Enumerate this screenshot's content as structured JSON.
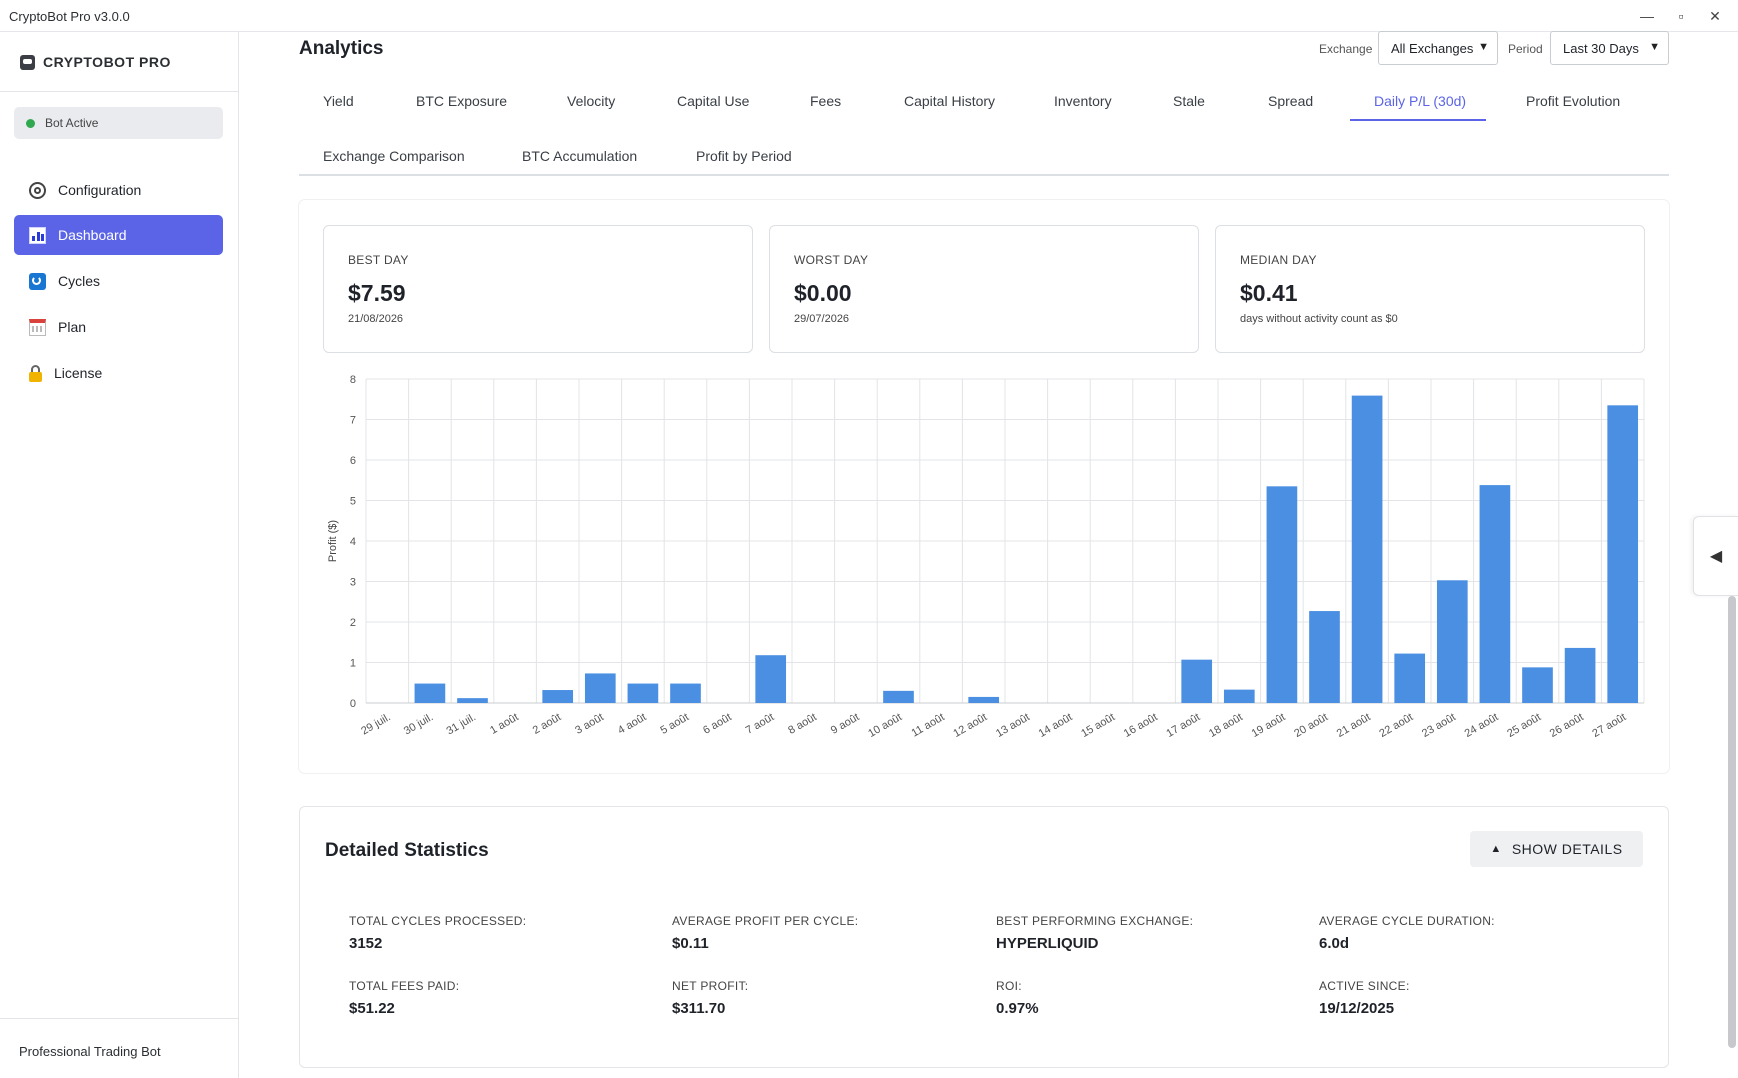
{
  "window": {
    "title": "CryptoBot Pro v3.0.0",
    "minimize": "—",
    "maximize": "▫",
    "close": "✕"
  },
  "sidebar": {
    "brand": "CRYPTOBOT PRO",
    "status": "Bot Active",
    "items": [
      {
        "label": "Configuration",
        "icon": "gear-icon"
      },
      {
        "label": "Dashboard",
        "icon": "chart-icon"
      },
      {
        "label": "Cycles",
        "icon": "cycles-icon"
      },
      {
        "label": "Plan",
        "icon": "calendar-icon"
      },
      {
        "label": "License",
        "icon": "lock-icon"
      }
    ],
    "footer": "Professional Trading Bot"
  },
  "header": {
    "title": "Analytics",
    "exchange_label": "Exchange",
    "exchange_value": "All Exchanges",
    "period_label": "Period",
    "period_value": "Last 30 Days"
  },
  "tabs": [
    "Yield",
    "BTC Exposure",
    "Velocity",
    "Capital Use",
    "Fees",
    "Capital History",
    "Inventory",
    "Stale",
    "Spread",
    "Daily P/L (30d)",
    "Profit Evolution",
    "Exchange Comparison",
    "BTC Accumulation",
    "Profit by Period"
  ],
  "active_tab": "Daily P/L (30d)",
  "stats": {
    "best": {
      "label": "BEST DAY",
      "value": "$7.59",
      "sub": "21/08/2026"
    },
    "worst": {
      "label": "WORST DAY",
      "value": "$0.00",
      "sub": "29/07/2026"
    },
    "median": {
      "label": "MEDIAN DAY",
      "value": "$0.41",
      "sub": "days without activity count as $0"
    }
  },
  "chart_data": {
    "type": "bar",
    "ylabel": "Profit ($)",
    "xlabel": "",
    "ylim": [
      0,
      8
    ],
    "yticks": [
      0,
      1,
      2,
      3,
      4,
      5,
      6,
      7,
      8
    ],
    "grid": true,
    "color": "#4a8fe2",
    "categories": [
      "29 juil.",
      "30 juil.",
      "31 juil.",
      "1 août",
      "2 août",
      "3 août",
      "4 août",
      "5 août",
      "6 août",
      "7 août",
      "8 août",
      "9 août",
      "10 août",
      "11 août",
      "12 août",
      "13 août",
      "14 août",
      "15 août",
      "16 août",
      "17 août",
      "18 août",
      "19 août",
      "20 août",
      "21 août",
      "22 août",
      "23 août",
      "24 août",
      "25 août",
      "26 août",
      "27 août"
    ],
    "values": [
      0,
      0.48,
      0.12,
      0,
      0.32,
      0.73,
      0.48,
      0.48,
      0,
      1.18,
      0,
      0,
      0.3,
      0,
      0.15,
      0,
      0,
      0,
      0,
      1.07,
      0.33,
      5.35,
      2.27,
      7.59,
      1.22,
      3.03,
      5.38,
      0.88,
      1.36,
      7.35
    ]
  },
  "details": {
    "title": "Detailed Statistics",
    "button": "SHOW DETAILS",
    "items": [
      {
        "label": "TOTAL CYCLES PROCESSED:",
        "value": "3152"
      },
      {
        "label": "AVERAGE PROFIT PER CYCLE:",
        "value": "$0.11"
      },
      {
        "label": "BEST PERFORMING EXCHANGE:",
        "value": "HYPERLIQUID"
      },
      {
        "label": "AVERAGE CYCLE DURATION:",
        "value": "6.0d"
      },
      {
        "label": "TOTAL FEES PAID:",
        "value": "$51.22"
      },
      {
        "label": "NET PROFIT:",
        "value": "$311.70"
      },
      {
        "label": "ROI:",
        "value": "0.97%"
      },
      {
        "label": "ACTIVE SINCE:",
        "value": "19/12/2025"
      }
    ]
  }
}
